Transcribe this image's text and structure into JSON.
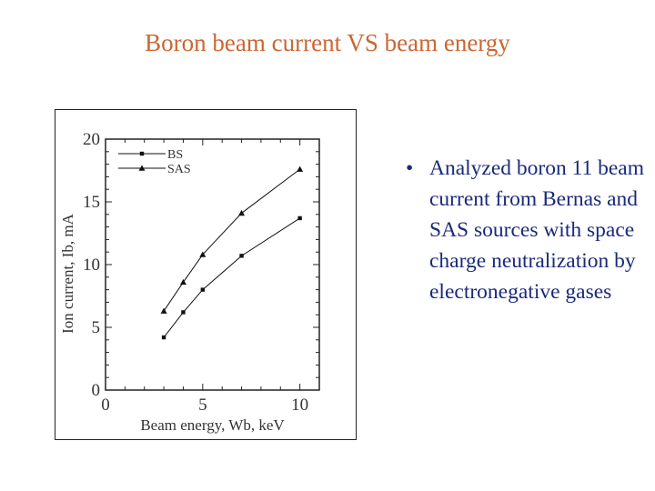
{
  "slide": {
    "title": "Boron beam current VS beam energy",
    "bullet_symbol": "•",
    "bullet_text": "Analyzed boron 11 beam current from Bernas and SAS sources with space charge neutralization by electronegative gases"
  },
  "colors": {
    "title": "#cc6633",
    "bullet": "#1a2a7a",
    "axis": "#222222"
  },
  "chart_data": {
    "type": "line",
    "xlabel": "Beam energy, Wb, keV",
    "ylabel": "Ion current, Ib, mA",
    "xlim": [
      0,
      11
    ],
    "ylim": [
      0,
      20
    ],
    "x_ticks": [
      0,
      5,
      10
    ],
    "x_tick_labels": [
      "0",
      "5",
      "10"
    ],
    "y_ticks": [
      0,
      5,
      10,
      15,
      20
    ],
    "y_tick_labels": [
      "0",
      "5",
      "10",
      "15",
      "20"
    ],
    "grid": false,
    "legend_position": "top-left",
    "series": [
      {
        "name": "BS",
        "marker": "square",
        "x": [
          3,
          4,
          5,
          7,
          10
        ],
        "y": [
          4.2,
          6.2,
          8.0,
          10.7,
          13.7
        ]
      },
      {
        "name": "SAS",
        "marker": "triangle",
        "x": [
          3,
          4,
          5,
          7,
          10
        ],
        "y": [
          6.3,
          8.6,
          10.8,
          14.1,
          17.6
        ]
      }
    ]
  }
}
